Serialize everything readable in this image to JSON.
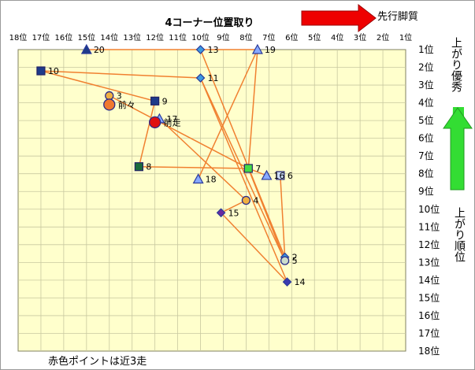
{
  "chart_data": {
    "type": "scatter",
    "title": "4コーナー位置取り",
    "x_axis_label": "先行脚質",
    "y_axis_label_top": "上がり優秀",
    "y_axis_label_right": "上がり順位",
    "footnote": "赤色ポイントは近3走",
    "x_tick_labels": [
      "18位",
      "17位",
      "16位",
      "15位",
      "14位",
      "13位",
      "12位",
      "11位",
      "10位",
      "9位",
      "8位",
      "7位",
      "6位",
      "5位",
      "4位",
      "3位",
      "2位",
      "1位"
    ],
    "y_tick_labels": [
      "1位",
      "2位",
      "3位",
      "4位",
      "5位",
      "6位",
      "7位",
      "8位",
      "9位",
      "10位",
      "11位",
      "12位",
      "13位",
      "14位",
      "15位",
      "16位",
      "17位",
      "18位"
    ],
    "xlim": [
      18,
      1
    ],
    "ylim": [
      1,
      18
    ],
    "grid": true,
    "colors": {
      "plot_bg": "#ffffcc",
      "grid": "#c8c8a0",
      "line": "#f08030",
      "arrow_red": "#ee0000",
      "arrow_green": "#33dd33"
    },
    "points": [
      {
        "label": "20",
        "x": 15,
        "y": 1,
        "shape": "triangle",
        "color": "#1e3a8a"
      },
      {
        "label": "13",
        "x": 10,
        "y": 1,
        "shape": "diamond",
        "color": "#3b9ae1"
      },
      {
        "label": "19",
        "x": 7.5,
        "y": 1,
        "shape": "triangle",
        "color": "#88aaff"
      },
      {
        "label": "10",
        "x": 17,
        "y": 2.2,
        "shape": "square",
        "color": "#1e3a8a"
      },
      {
        "label": "11",
        "x": 10,
        "y": 2.6,
        "shape": "diamond",
        "color": "#3b9ae1"
      },
      {
        "label": "3",
        "x": 14,
        "y": 3.6,
        "shape": "circle",
        "color": "#f0b040"
      },
      {
        "label": "前々",
        "x": 14,
        "y": 4.1,
        "shape": "circle",
        "color": "#f07830"
      },
      {
        "label": "9",
        "x": 12,
        "y": 3.9,
        "shape": "square",
        "color": "#1e3a8a"
      },
      {
        "label": "17",
        "x": 11.8,
        "y": 4.9,
        "shape": "triangle",
        "color": "#88aaff"
      },
      {
        "label": "前走",
        "x": 12,
        "y": 5.1,
        "shape": "circle",
        "color": "#e01010"
      },
      {
        "label": "8",
        "x": 12.7,
        "y": 7.6,
        "shape": "square",
        "color": "#1a6b3c"
      },
      {
        "label": "18",
        "x": 10.1,
        "y": 8.3,
        "shape": "triangle",
        "color": "#88aaff"
      },
      {
        "label": "7",
        "x": 7.9,
        "y": 7.7,
        "shape": "square",
        "color": "#44dd44"
      },
      {
        "label": "16",
        "x": 7.1,
        "y": 8.1,
        "shape": "triangle",
        "color": "#88aaff"
      },
      {
        "label": "6",
        "x": 6.5,
        "y": 8.1,
        "shape": "square",
        "color": "#ccddff"
      },
      {
        "label": "4",
        "x": 8,
        "y": 9.5,
        "shape": "circle",
        "color": "#f0b040"
      },
      {
        "label": "15",
        "x": 9.1,
        "y": 10.2,
        "shape": "diamond",
        "color": "#6a2aa0"
      },
      {
        "label": "2",
        "x": 6.3,
        "y": 12.7,
        "shape": "diamond",
        "color": "#3b9ae1"
      },
      {
        "label": "5",
        "x": 6.3,
        "y": 12.9,
        "shape": "circle",
        "color": "#ccddcc"
      },
      {
        "label": "14",
        "x": 6.2,
        "y": 14.1,
        "shape": "diamond",
        "color": "#3a3ab0"
      }
    ],
    "lines": [
      [
        "10",
        "9"
      ],
      [
        "10",
        "11"
      ],
      [
        "20",
        "13"
      ],
      [
        "13",
        "19"
      ],
      [
        "13",
        "2"
      ],
      [
        "11",
        "14"
      ],
      [
        "11",
        "5"
      ],
      [
        "19",
        "18"
      ],
      [
        "9",
        "8"
      ],
      [
        "3",
        "7"
      ],
      [
        "17",
        "4"
      ],
      [
        "8",
        "7"
      ],
      [
        "7",
        "16"
      ],
      [
        "6",
        "2"
      ],
      [
        "7",
        "5"
      ],
      [
        "4",
        "15"
      ],
      [
        "15",
        "14"
      ],
      [
        "19",
        "7"
      ]
    ]
  }
}
